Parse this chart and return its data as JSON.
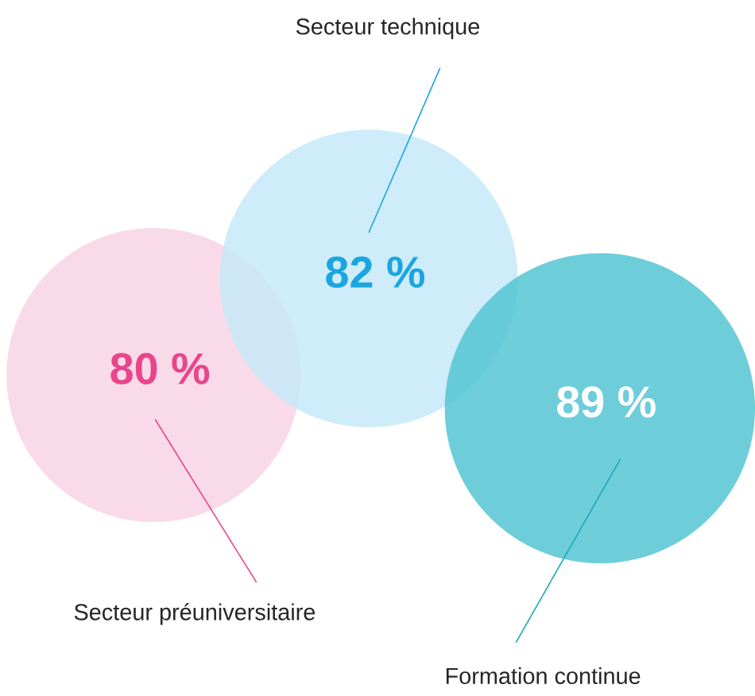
{
  "chart_data": {
    "type": "other",
    "categories": [
      "Secteur préuniversitaire",
      "Secteur technique",
      "Formation continue"
    ],
    "values": [
      80,
      82,
      89
    ],
    "value_labels": [
      "80 %",
      "82 %",
      "89 %"
    ],
    "colors": [
      "#f8d3e4",
      "#c6e9f8",
      "#54c5d3"
    ]
  }
}
